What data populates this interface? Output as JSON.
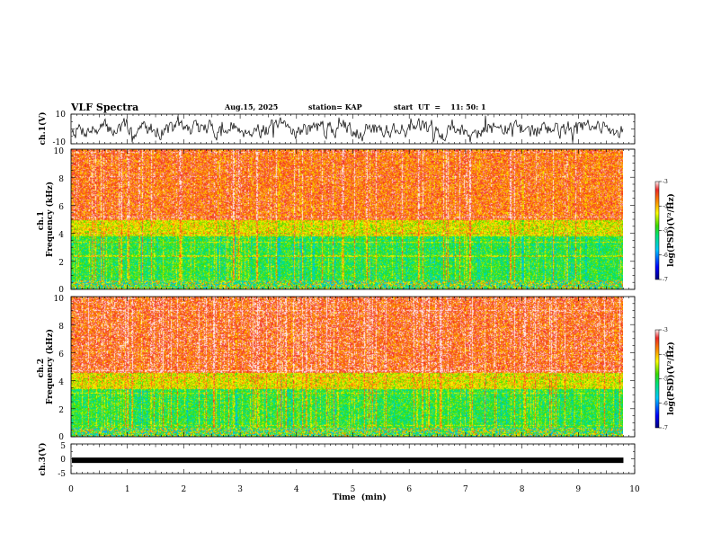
{
  "header": {
    "title": "VLF Spectra",
    "date": "Aug.15, 2025",
    "station": "station= KAP",
    "start": "start  UT  =    11: 50: 1"
  },
  "chart_data": [
    {
      "type": "line",
      "id": "ch1-waveform",
      "ylabel": "ch.1(V)",
      "ylim": [
        -10,
        10
      ],
      "ytick_labels": [
        "-10",
        "10"
      ],
      "xlim": [
        0,
        10
      ],
      "seed": 7
    },
    {
      "type": "heatmap",
      "id": "ch1-spectrogram",
      "ylabel": "ch.1\nFrequency (kHz)",
      "ylim": [
        0,
        10
      ],
      "ytick_labels": [
        "0",
        "2",
        "4",
        "6",
        "8",
        "10"
      ],
      "xlim": [
        0,
        9.8
      ],
      "colorbar": {
        "label": "log(PSD)(V²/Hz)",
        "range": [
          -7,
          -3
        ],
        "tick_labels": [
          "-3",
          "-4",
          "-5",
          "-6",
          "-7"
        ]
      },
      "bands": [
        {
          "from_khz": 0.0,
          "to_khz": 0.7,
          "level": "mixed"
        },
        {
          "from_khz": 0.7,
          "to_khz": 3.8,
          "level": -5.0
        },
        {
          "from_khz": 3.8,
          "to_khz": 5.0,
          "level": -4.3
        },
        {
          "from_khz": 5.0,
          "to_khz": 10.0,
          "level": -3.6
        }
      ],
      "seed": 11
    },
    {
      "type": "heatmap",
      "id": "ch2-spectrogram",
      "ylabel": "ch.2\nFrequency (kHz)",
      "ylim": [
        0,
        10
      ],
      "ytick_labels": [
        "0",
        "2",
        "4",
        "6",
        "8",
        "10"
      ],
      "xlim": [
        0,
        9.8
      ],
      "colorbar": {
        "label": "log(PSD)(V²/Hz)",
        "range": [
          -7,
          -3
        ],
        "tick_labels": [
          "-3",
          "-4",
          "-5",
          "-6",
          "-7"
        ]
      },
      "bands": [
        {
          "from_khz": 0.0,
          "to_khz": 0.7,
          "level": "mixed"
        },
        {
          "from_khz": 0.7,
          "to_khz": 3.4,
          "level": -5.0
        },
        {
          "from_khz": 3.4,
          "to_khz": 4.6,
          "level": -4.3
        },
        {
          "from_khz": 4.6,
          "to_khz": 10.0,
          "level": -3.5
        }
      ],
      "seed": 23
    },
    {
      "type": "line",
      "id": "ch3-waveform",
      "ylabel": "ch.3(V)",
      "ylim": [
        -5,
        5
      ],
      "ytick_labels": [
        "-5",
        "0",
        "5"
      ],
      "xlim": [
        0,
        9.8
      ],
      "level": -0.5,
      "seed": 3
    }
  ],
  "xaxis": {
    "title": "Time  (min)",
    "range": [
      0,
      10
    ],
    "tick_labels": [
      "0",
      "1",
      "2",
      "3",
      "4",
      "5",
      "6",
      "7",
      "8",
      "9",
      "10"
    ]
  }
}
